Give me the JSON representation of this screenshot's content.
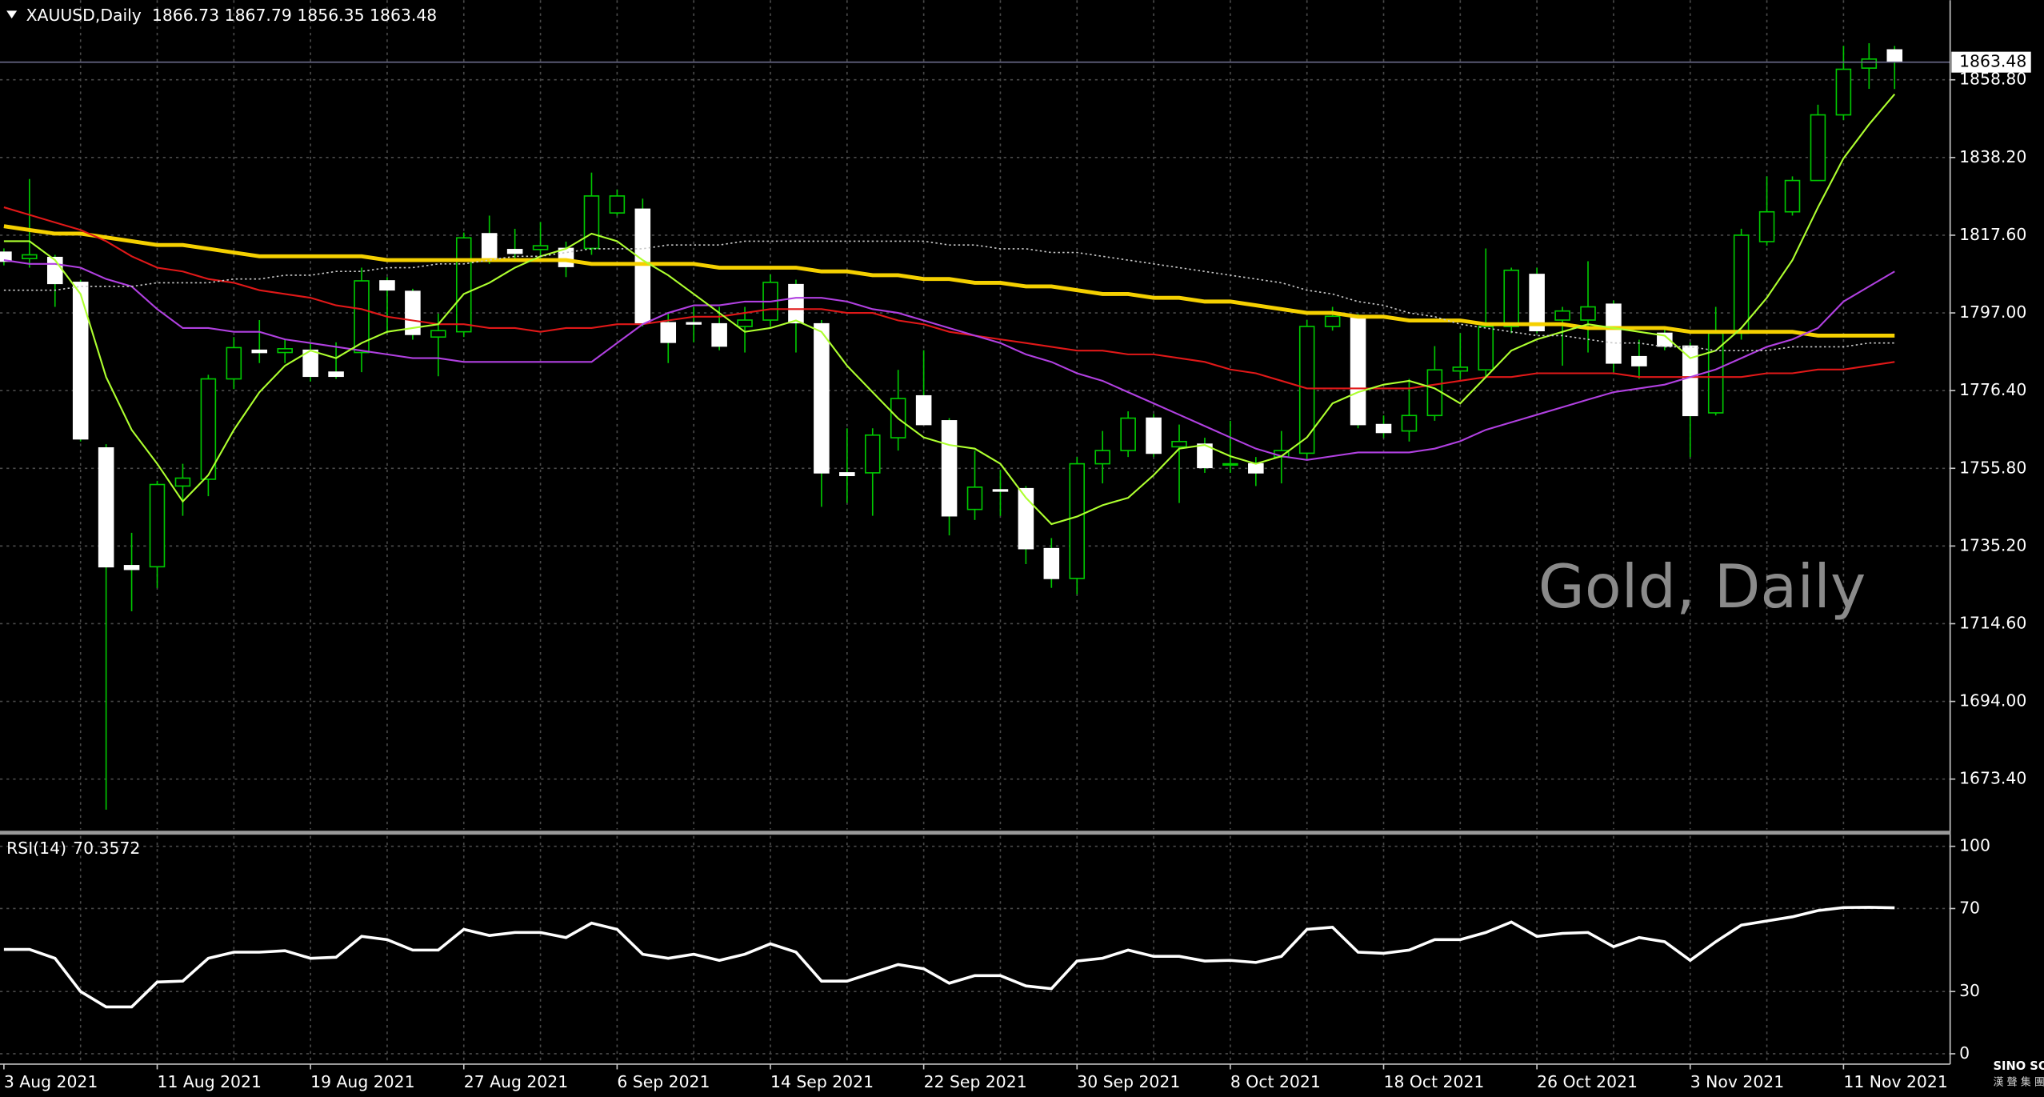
{
  "chart_data": [
    {
      "type": "candlestick",
      "title": "XAUUSD,Daily",
      "watermark": "Gold, Daily",
      "categories": [
        "3 Aug 2021",
        null,
        null,
        null,
        null,
        null,
        "11 Aug 2021",
        null,
        null,
        null,
        null,
        null,
        "19 Aug 2021",
        null,
        null,
        null,
        null,
        null,
        "27 Aug 2021",
        null,
        null,
        null,
        null,
        null,
        "6 Sep 2021",
        null,
        null,
        null,
        null,
        null,
        "14 Sep 2021",
        null,
        null,
        null,
        null,
        null,
        "22 Sep 2021",
        null,
        null,
        null,
        null,
        null,
        "30 Sep 2021",
        null,
        null,
        null,
        null,
        null,
        "8 Oct 2021",
        null,
        null,
        null,
        null,
        null,
        "18 Oct 2021",
        null,
        null,
        null,
        null,
        null,
        "26 Oct 2021",
        null,
        null,
        null,
        null,
        null,
        "3 Nov 2021",
        null,
        null,
        null,
        null,
        null,
        "11 Nov 2021",
        null,
        null
      ],
      "open": [
        1813.1,
        1811.4,
        1811.7,
        1805.1,
        1761.2,
        1730.0,
        1729.7,
        1751.1,
        1752.9,
        1779.5,
        1787.1,
        1786.5,
        1787.1,
        1781.3,
        1786.5,
        1805.5,
        1802.7,
        1790.6,
        1792.0,
        1818.0,
        1813.8,
        1813.8,
        1814.1,
        1814.1,
        1823.5,
        1824.5,
        1794.4,
        1794.4,
        1794.1,
        1793.4,
        1795.1,
        1804.5,
        1794.1,
        1754.6,
        1754.6,
        1763.9,
        1775.0,
        1768.4,
        1744.9,
        1750.1,
        1750.4,
        1734.5,
        1726.6,
        1757.0,
        1760.5,
        1769.1,
        1761.5,
        1762.2,
        1756.7,
        1757.0,
        1758.8,
        1759.8,
        1793.4,
        1795.8,
        1767.4,
        1765.7,
        1769.8,
        1781.6,
        1781.9,
        1793.4,
        1807.2,
        1795.1,
        1795.1,
        1799.3,
        1785.4,
        1791.6,
        1788.2,
        1770.5,
        1791.6,
        1815.9,
        1823.8,
        1832.1,
        1849.5,
        1861.9,
        1866.73
      ],
      "high": [
        1814.1,
        1832.5,
        1812.4,
        1805.8,
        1762.2,
        1738.7,
        1752.5,
        1757.0,
        1780.6,
        1790.6,
        1795.1,
        1789.9,
        1789.2,
        1789.2,
        1809.0,
        1806.5,
        1803.4,
        1796.8,
        1818.3,
        1822.8,
        1819.3,
        1821.1,
        1815.9,
        1834.2,
        1829.7,
        1827.3,
        1796.8,
        1798.6,
        1798.6,
        1798.6,
        1807.2,
        1805.8,
        1795.1,
        1766.4,
        1766.4,
        1781.9,
        1787.1,
        1769.1,
        1760.5,
        1755.3,
        1751.1,
        1737.3,
        1758.8,
        1765.7,
        1770.9,
        1770.2,
        1767.4,
        1763.9,
        1768.4,
        1758.8,
        1765.7,
        1795.1,
        1798.6,
        1796.8,
        1769.8,
        1779.5,
        1788.2,
        1791.6,
        1814.1,
        1809.0,
        1809.0,
        1798.6,
        1810.7,
        1800.3,
        1789.9,
        1793.4,
        1789.2,
        1798.6,
        1819.3,
        1833.2,
        1833.2,
        1852.2,
        1867.8,
        1868.5,
        1867.79
      ],
      "low": [
        1809.6,
        1809.0,
        1798.6,
        1762.9,
        1665.3,
        1717.9,
        1724.1,
        1743.2,
        1748.4,
        1776.8,
        1783.7,
        1783.7,
        1778.8,
        1779.5,
        1781.3,
        1791.6,
        1789.9,
        1780.2,
        1790.6,
        1810.0,
        1810.7,
        1810.7,
        1806.5,
        1812.4,
        1822.8,
        1793.4,
        1783.7,
        1789.2,
        1787.1,
        1786.5,
        1793.4,
        1786.5,
        1745.6,
        1746.6,
        1743.2,
        1760.5,
        1767.4,
        1738.0,
        1742.1,
        1743.2,
        1730.4,
        1724.1,
        1722.4,
        1751.8,
        1758.8,
        1758.8,
        1746.6,
        1754.6,
        1754.6,
        1751.1,
        1751.8,
        1758.1,
        1792.3,
        1766.4,
        1763.9,
        1762.9,
        1768.4,
        1779.5,
        1780.2,
        1791.6,
        1791.6,
        1783.0,
        1786.5,
        1781.3,
        1779.5,
        1787.1,
        1758.8,
        1769.8,
        1789.9,
        1814.8,
        1822.8,
        1832.1,
        1848.1,
        1856.4,
        1856.35
      ],
      "close": [
        1810.7,
        1812.4,
        1804.8,
        1763.6,
        1729.7,
        1729.0,
        1751.5,
        1753.2,
        1779.5,
        1787.8,
        1786.5,
        1787.5,
        1780.2,
        1780.2,
        1805.5,
        1803.1,
        1791.3,
        1792.3,
        1816.9,
        1810.7,
        1812.8,
        1814.8,
        1809.3,
        1828.0,
        1828.0,
        1794.4,
        1789.2,
        1794.1,
        1788.2,
        1795.1,
        1805.1,
        1794.4,
        1754.6,
        1753.9,
        1764.6,
        1774.3,
        1767.4,
        1743.2,
        1750.8,
        1749.8,
        1734.5,
        1726.6,
        1757.0,
        1760.5,
        1769.1,
        1759.8,
        1762.9,
        1756.0,
        1757.0,
        1754.6,
        1760.5,
        1793.4,
        1796.1,
        1767.4,
        1765.3,
        1769.8,
        1781.9,
        1782.6,
        1793.4,
        1808.3,
        1792.3,
        1797.5,
        1798.6,
        1783.7,
        1783.0,
        1788.2,
        1769.8,
        1791.6,
        1817.6,
        1823.8,
        1832.1,
        1849.5,
        1861.6,
        1864.3,
        1863.48
      ],
      "up_color": "#00c800",
      "down_color": "#ffffff",
      "wick_color": "#00c800",
      "series": [
        {
          "color": "#f5d000",
          "values": [
            1820,
            1819,
            1818,
            1818,
            1817,
            1816,
            1815,
            1815,
            1814,
            1813,
            1812,
            1812,
            1812,
            1812,
            1812,
            1811,
            1811,
            1811,
            1811,
            1811,
            1811,
            1811,
            1811,
            1810,
            1810,
            1810,
            1810,
            1810,
            1809,
            1809,
            1809,
            1809,
            1808,
            1808,
            1807,
            1807,
            1806,
            1806,
            1805,
            1805,
            1804,
            1804,
            1803,
            1802,
            1802,
            1801,
            1801,
            1800,
            1800,
            1799,
            1798,
            1797,
            1797,
            1796,
            1796,
            1795,
            1795,
            1795,
            1794,
            1794,
            1794,
            1794,
            1793,
            1793,
            1793,
            1793,
            1792,
            1792,
            1792,
            1792,
            1792,
            1791,
            1791,
            1791,
            1791
          ]
        },
        {
          "color": "#e01818",
          "values": [
            1825,
            1823,
            1821,
            1819,
            1816,
            1812,
            1809,
            1808,
            1806,
            1805,
            1803,
            1802,
            1801,
            1799,
            1798,
            1796,
            1795,
            1794,
            1794,
            1793,
            1793,
            1792,
            1793,
            1793,
            1794,
            1794,
            1795,
            1796,
            1796,
            1797,
            1798,
            1798,
            1798,
            1797,
            1797,
            1795,
            1794,
            1792,
            1791,
            1790,
            1789,
            1788,
            1787,
            1787,
            1786,
            1786,
            1785,
            1784,
            1782,
            1781,
            1779,
            1777,
            1777,
            1777,
            1777,
            1777,
            1778,
            1779,
            1780,
            1780,
            1781,
            1781,
            1781,
            1781,
            1780,
            1780,
            1780,
            1780,
            1780,
            1781,
            1781,
            1782,
            1782,
            1783,
            1784
          ]
        },
        {
          "color": "#b040e0",
          "values": [
            1811,
            1810,
            1810,
            1809,
            1806,
            1804,
            1798,
            1793,
            1793,
            1792,
            1792,
            1790,
            1789,
            1788,
            1787,
            1786,
            1785,
            1785,
            1784,
            1784,
            1784,
            1784,
            1784,
            1784,
            1789,
            1794,
            1797,
            1799,
            1799,
            1800,
            1800,
            1801,
            1801,
            1800,
            1798,
            1797,
            1795,
            1793,
            1791,
            1789,
            1786,
            1784,
            1781,
            1779,
            1776,
            1773,
            1770,
            1767,
            1764,
            1761,
            1759,
            1758,
            1759,
            1760,
            1760,
            1760,
            1761,
            1763,
            1766,
            1768,
            1770,
            1772,
            1774,
            1776,
            1777,
            1778,
            1780,
            1782,
            1785,
            1788,
            1790,
            1793,
            1800,
            1804,
            1808
          ]
        },
        {
          "color": "#adff2f",
          "values": [
            1816,
            1816,
            1811,
            1802,
            1780,
            1766,
            1757,
            1747,
            1754,
            1766,
            1776,
            1783,
            1787,
            1785,
            1789,
            1792,
            1793,
            1794,
            1802,
            1805,
            1809,
            1812,
            1814,
            1818,
            1816,
            1811,
            1807,
            1802,
            1797,
            1792,
            1793,
            1795,
            1792,
            1783,
            1776,
            1769,
            1764,
            1762,
            1761,
            1757,
            1748,
            1741,
            1743,
            1746,
            1748,
            1754,
            1761,
            1762,
            1759,
            1757,
            1759,
            1764,
            1773,
            1776,
            1778,
            1779,
            1777,
            1773,
            1780,
            1787,
            1790,
            1792,
            1794,
            1793,
            1792,
            1791,
            1785,
            1787,
            1793,
            1801,
            1811,
            1825,
            1838,
            1847,
            1855
          ]
        },
        {
          "color": "#c8c8c8",
          "dashed": true,
          "values": [
            1803,
            1803,
            1803,
            1804,
            1804,
            1804,
            1805,
            1805,
            1805,
            1806,
            1806,
            1807,
            1807,
            1808,
            1808,
            1809,
            1809,
            1810,
            1810,
            1811,
            1812,
            1812,
            1813,
            1814,
            1814,
            1814,
            1815,
            1815,
            1815,
            1816,
            1816,
            1816,
            1816,
            1816,
            1816,
            1816,
            1816,
            1815,
            1815,
            1814,
            1814,
            1813,
            1813,
            1812,
            1811,
            1810,
            1809,
            1808,
            1807,
            1806,
            1805,
            1803,
            1802,
            1800,
            1799,
            1797,
            1796,
            1794,
            1793,
            1792,
            1791,
            1791,
            1790,
            1789,
            1789,
            1788,
            1788,
            1787,
            1787,
            1787,
            1788,
            1788,
            1788,
            1789,
            1789
          ]
        }
      ],
      "ylim": [
        1659.7,
        1879.2
      ],
      "yticks": [
        {
          "value": 1858.8,
          "label": "1858.80"
        },
        {
          "value": 1838.2,
          "label": "1838.20"
        },
        {
          "value": 1817.6,
          "label": "1817.60"
        },
        {
          "value": 1797,
          "label": "1797.00"
        },
        {
          "value": 1776.4,
          "label": "1776.40"
        },
        {
          "value": 1755.8,
          "label": "1755.80"
        },
        {
          "value": 1735.2,
          "label": "1735.20"
        },
        {
          "value": 1714.6,
          "label": "1714.60"
        },
        {
          "value": 1694,
          "label": "1694.00"
        },
        {
          "value": 1673.4,
          "label": "1673.40"
        }
      ],
      "grid": true
    },
    {
      "type": "line",
      "title": "RSI(14)",
      "color": "#ffffff",
      "values": [
        50.3,
        50.3,
        46,
        30,
        22.6,
        22.6,
        34.6,
        35,
        46,
        49,
        49,
        49.7,
        46,
        46.5,
        56.6,
        55,
        50,
        50,
        60,
        57,
        58.5,
        58.5,
        56,
        63,
        60,
        48,
        46,
        48,
        45,
        48,
        53,
        49,
        35,
        35,
        39,
        43,
        41,
        34,
        37.7,
        37.7,
        32.7,
        31.4,
        44.7,
        46,
        50,
        47,
        47,
        44.7,
        45,
        44,
        47,
        60,
        61,
        49,
        48.4,
        50,
        55,
        55,
        58.5,
        63.5,
        56.6,
        58,
        58.5,
        51.6,
        56,
        54,
        45,
        54,
        62,
        64,
        66,
        69,
        70.5,
        70.6,
        70.3572
      ],
      "ylim": [
        -5,
        105.6
      ],
      "yticks": [
        100,
        70,
        30,
        0
      ],
      "grid": true
    }
  ],
  "logo": {
    "name": "SINO SOUND",
    "subtitle": "漢 聲 集 團"
  }
}
